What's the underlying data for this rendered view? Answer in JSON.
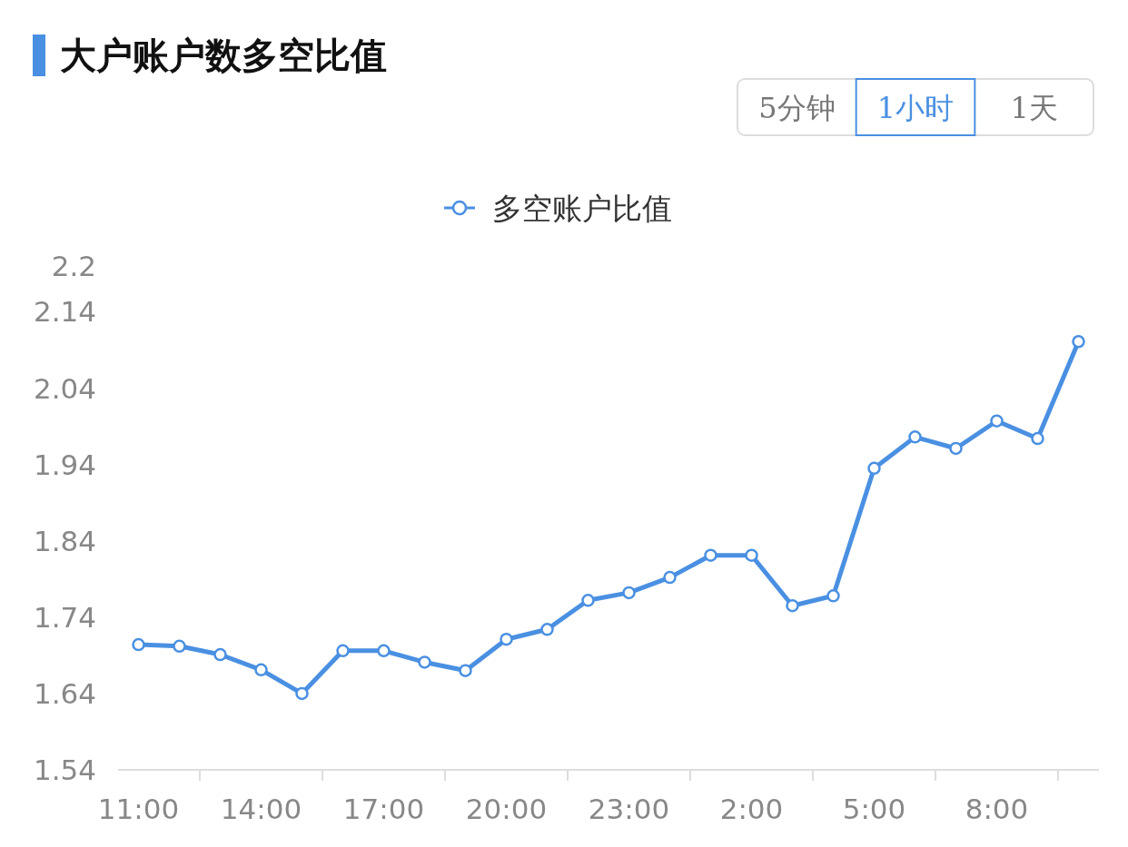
{
  "chart_data": {
    "type": "line",
    "title": "大户账户数多空比值",
    "annotations": [
      "5分钟",
      "1小时",
      "1天"
    ],
    "categories": [
      "11:00",
      null,
      null,
      "14:00",
      null,
      null,
      "17:00",
      null,
      null,
      "20:00",
      null,
      null,
      "23:00",
      null,
      null,
      "2:00",
      null,
      null,
      "5:00",
      null,
      null,
      "8:00",
      null,
      null
    ],
    "series": [
      {
        "name": "多空账户比值",
        "color": "#4a90e2",
        "values": [
          1.704,
          1.702,
          1.691,
          1.671,
          1.64,
          1.696,
          1.696,
          1.681,
          1.67,
          1.711,
          1.724,
          1.762,
          1.772,
          1.792,
          1.821,
          1.821,
          1.755,
          1.768,
          1.935,
          1.976,
          1.961,
          1.997,
          1.974,
          2.101
        ]
      }
    ],
    "ylim": [
      1.54,
      2.2
    ],
    "yticks": [
      1.54,
      1.64,
      1.74,
      1.84,
      1.94,
      2.04,
      2.14,
      2.2
    ],
    "legend": "top",
    "marker": "circle",
    "line_style": "solid"
  }
}
